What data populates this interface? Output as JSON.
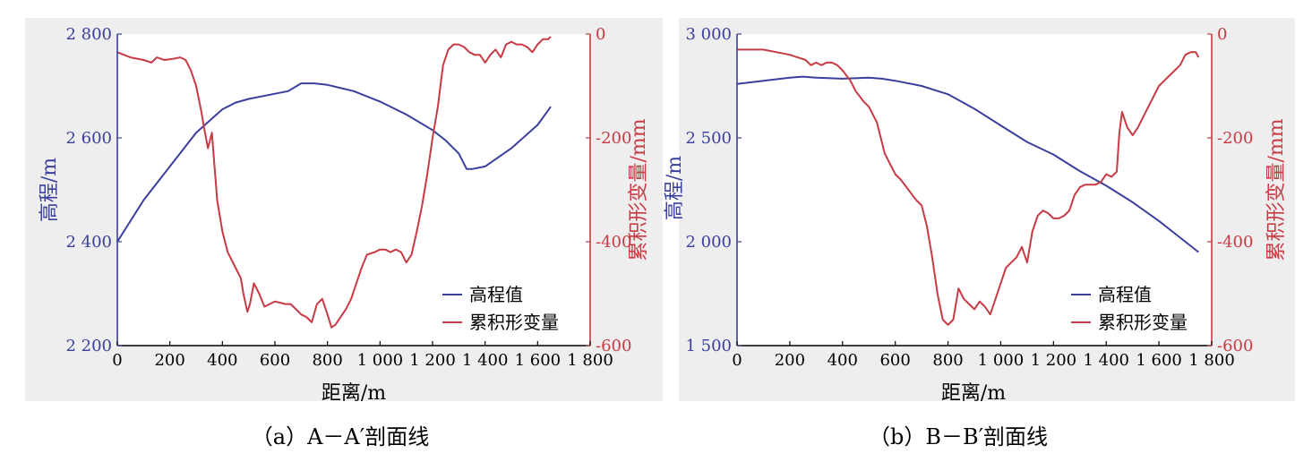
{
  "chart_data": [
    {
      "id": "a",
      "type": "line",
      "caption": "（a）A－A′剖面线",
      "xlabel": "距离/m",
      "ylabel_left": "高程/m",
      "ylabel_right": "累积形变量/mm",
      "xlim": [
        0,
        1800
      ],
      "ylim_left": [
        2200,
        2800
      ],
      "ylim_right": [
        -600,
        0
      ],
      "xticks": [
        0,
        200,
        400,
        600,
        800,
        1000,
        1200,
        1400,
        1600,
        1800
      ],
      "xtick_labels": [
        "0",
        "200",
        "400",
        "600",
        "800",
        "1 000",
        "1 200",
        "1 400",
        "1 600",
        "1 800"
      ],
      "yticks_left": [
        2200,
        2400,
        2600,
        2800
      ],
      "ytick_labels_left": [
        "2 200",
        "2 400",
        "2 600",
        "2 800"
      ],
      "yticks_right": [
        -600,
        -400,
        -200,
        0
      ],
      "ytick_labels_right": [
        "-600",
        "-400",
        "-200",
        "0"
      ],
      "legend_position": "bottom-right",
      "series": [
        {
          "name": "高程值",
          "axis": "left",
          "color": "#3a3f9e",
          "x": [
            0,
            100,
            200,
            300,
            400,
            450,
            500,
            600,
            650,
            700,
            750,
            800,
            900,
            1000,
            1100,
            1200,
            1250,
            1300,
            1330,
            1350,
            1400,
            1500,
            1600,
            1650
          ],
          "y": [
            2400,
            2480,
            2545,
            2610,
            2655,
            2668,
            2675,
            2685,
            2690,
            2705,
            2705,
            2702,
            2690,
            2670,
            2645,
            2615,
            2595,
            2570,
            2540,
            2540,
            2545,
            2580,
            2625,
            2660
          ]
        },
        {
          "name": "累积形变量",
          "axis": "right",
          "color": "#c83a44",
          "x": [
            0,
            50,
            100,
            130,
            150,
            180,
            210,
            240,
            260,
            280,
            300,
            320,
            330,
            345,
            360,
            380,
            400,
            420,
            450,
            470,
            480,
            495,
            505,
            520,
            540,
            560,
            600,
            640,
            660,
            680,
            700,
            720,
            740,
            760,
            780,
            800,
            815,
            830,
            850,
            870,
            890,
            910,
            930,
            950,
            980,
            1000,
            1020,
            1040,
            1060,
            1080,
            1100,
            1120,
            1140,
            1160,
            1180,
            1200,
            1220,
            1240,
            1260,
            1280,
            1300,
            1320,
            1340,
            1360,
            1380,
            1400,
            1420,
            1440,
            1460,
            1480,
            1500,
            1520,
            1540,
            1560,
            1580,
            1600,
            1620,
            1640,
            1650
          ],
          "y": [
            -35,
            -45,
            -50,
            -55,
            -45,
            -50,
            -48,
            -45,
            -50,
            -70,
            -100,
            -150,
            -180,
            -220,
            -190,
            -320,
            -380,
            -420,
            -450,
            -470,
            -500,
            -535,
            -520,
            -480,
            -500,
            -525,
            -515,
            -520,
            -520,
            -530,
            -540,
            -545,
            -555,
            -520,
            -510,
            -540,
            -565,
            -560,
            -545,
            -530,
            -510,
            -480,
            -450,
            -425,
            -420,
            -415,
            -415,
            -420,
            -415,
            -420,
            -440,
            -425,
            -380,
            -330,
            -270,
            -200,
            -140,
            -60,
            -30,
            -20,
            -20,
            -25,
            -35,
            -40,
            -40,
            -55,
            -40,
            -30,
            -45,
            -20,
            -15,
            -20,
            -20,
            -25,
            -35,
            -20,
            -10,
            -10,
            -5
          ]
        }
      ]
    },
    {
      "id": "b",
      "type": "line",
      "caption": "（b）B－B′剖面线",
      "xlabel": "距离/m",
      "ylabel_left": "高程/m",
      "ylabel_right": "累积形变量/mm",
      "xlim": [
        0,
        1800
      ],
      "ylim_left": [
        1500,
        3000
      ],
      "ylim_right": [
        -600,
        0
      ],
      "xticks": [
        0,
        200,
        400,
        600,
        800,
        1000,
        1200,
        1400,
        1600,
        1800
      ],
      "xtick_labels": [
        "0",
        "200",
        "400",
        "600",
        "800",
        "1 000",
        "1 200",
        "1 400",
        "1 600",
        "1 800"
      ],
      "yticks_left": [
        1500,
        2000,
        2500,
        3000
      ],
      "ytick_labels_left": [
        "1 500",
        "2 000",
        "2 500",
        "3 000"
      ],
      "yticks_right": [
        -600,
        -400,
        -200,
        0
      ],
      "ytick_labels_right": [
        "-600",
        "-400",
        "-200",
        "0"
      ],
      "legend_position": "bottom-right",
      "series": [
        {
          "name": "高程值",
          "axis": "left",
          "color": "#3a3f9e",
          "x": [
            0,
            100,
            200,
            250,
            300,
            400,
            500,
            550,
            600,
            700,
            800,
            900,
            1000,
            1100,
            1200,
            1300,
            1400,
            1500,
            1600,
            1700,
            1750
          ],
          "y": [
            2760,
            2775,
            2790,
            2795,
            2790,
            2785,
            2790,
            2785,
            2775,
            2750,
            2710,
            2640,
            2560,
            2480,
            2420,
            2340,
            2270,
            2190,
            2100,
            2000,
            1950
          ]
        },
        {
          "name": "累积形变量",
          "axis": "right",
          "color": "#c83a44",
          "x": [
            0,
            50,
            100,
            150,
            200,
            230,
            260,
            280,
            300,
            320,
            340,
            360,
            380,
            400,
            430,
            450,
            480,
            500,
            530,
            560,
            580,
            600,
            620,
            650,
            680,
            700,
            720,
            740,
            760,
            780,
            800,
            820,
            840,
            860,
            880,
            900,
            920,
            940,
            960,
            980,
            1000,
            1020,
            1040,
            1060,
            1080,
            1100,
            1120,
            1140,
            1160,
            1180,
            1200,
            1220,
            1240,
            1260,
            1280,
            1300,
            1320,
            1340,
            1360,
            1380,
            1400,
            1420,
            1440,
            1450,
            1460,
            1480,
            1500,
            1520,
            1540,
            1560,
            1580,
            1600,
            1620,
            1640,
            1660,
            1680,
            1700,
            1720,
            1740,
            1750
          ],
          "y": [
            -30,
            -30,
            -30,
            -35,
            -40,
            -45,
            -50,
            -60,
            -55,
            -60,
            -55,
            -55,
            -60,
            -70,
            -90,
            -110,
            -130,
            -140,
            -170,
            -230,
            -250,
            -270,
            -280,
            -300,
            -320,
            -330,
            -370,
            -430,
            -500,
            -550,
            -560,
            -550,
            -490,
            -510,
            -520,
            -530,
            -515,
            -525,
            -540,
            -510,
            -480,
            -450,
            -440,
            -430,
            -410,
            -440,
            -380,
            -350,
            -340,
            -345,
            -355,
            -355,
            -350,
            -340,
            -310,
            -295,
            -290,
            -290,
            -290,
            -285,
            -270,
            -275,
            -265,
            -190,
            -150,
            -180,
            -195,
            -180,
            -160,
            -140,
            -120,
            -100,
            -90,
            -80,
            -70,
            -60,
            -40,
            -35,
            -35,
            -45
          ]
        }
      ]
    }
  ]
}
